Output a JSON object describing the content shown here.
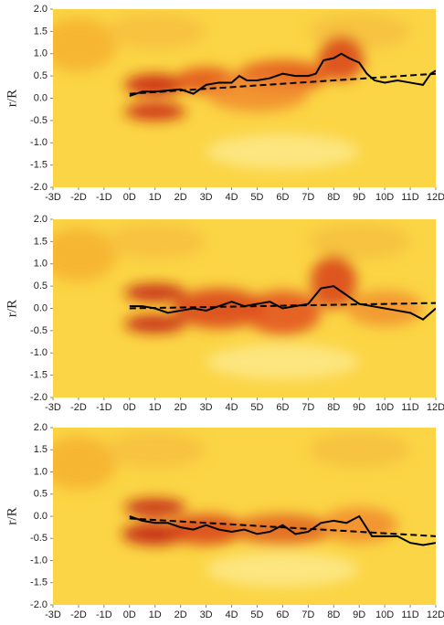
{
  "chart_data": [
    {
      "type": "line",
      "ylabel": "r/R",
      "xlim": [
        -3,
        12
      ],
      "ylim": [
        -2,
        2
      ],
      "xticks": [
        {
          "value": -3,
          "label": "-3D"
        },
        {
          "value": -2,
          "label": "-2D"
        },
        {
          "value": -1,
          "label": "-1D"
        },
        {
          "value": 0,
          "label": "0D"
        },
        {
          "value": 1,
          "label": "1D"
        },
        {
          "value": 2,
          "label": "2D"
        },
        {
          "value": 3,
          "label": "3D"
        },
        {
          "value": 4,
          "label": "4D"
        },
        {
          "value": 5,
          "label": "5D"
        },
        {
          "value": 6,
          "label": "6D"
        },
        {
          "value": 7,
          "label": "7D"
        },
        {
          "value": 8,
          "label": "8D"
        },
        {
          "value": 9,
          "label": "9D"
        },
        {
          "value": 10,
          "label": "10D"
        },
        {
          "value": 11,
          "label": "11D"
        },
        {
          "value": 12,
          "label": "12D"
        }
      ],
      "yticks": [
        {
          "value": 2,
          "label": "2.0"
        },
        {
          "value": 1.5,
          "label": "1.5"
        },
        {
          "value": 1,
          "label": "1.0"
        },
        {
          "value": 0.5,
          "label": "0.5"
        },
        {
          "value": 0,
          "label": "0.0"
        },
        {
          "value": -0.5,
          "label": "-0.5"
        },
        {
          "value": -1,
          "label": "-1.0"
        },
        {
          "value": -1.5,
          "label": "-1.5"
        },
        {
          "value": -2,
          "label": "-2.0"
        }
      ],
      "grid": false,
      "series": [
        {
          "color": "#000000",
          "dash": "solid",
          "x": [
            0,
            0.5,
            1,
            2,
            2.5,
            3,
            3.5,
            4,
            4.3,
            4.6,
            5,
            5.5,
            6,
            6.5,
            7,
            7.3,
            7.6,
            8,
            8.3,
            8.6,
            9,
            9.3,
            9.6,
            10,
            10.5,
            11,
            11.5,
            11.8,
            12
          ],
          "values": [
            0.05,
            0.15,
            0.15,
            0.2,
            0.1,
            0.3,
            0.35,
            0.35,
            0.5,
            0.4,
            0.4,
            0.45,
            0.55,
            0.5,
            0.5,
            0.55,
            0.85,
            0.9,
            1.0,
            0.9,
            0.8,
            0.55,
            0.4,
            0.35,
            0.4,
            0.35,
            0.3,
            0.55,
            0.62
          ]
        },
        {
          "color": "#000000",
          "dash": "dashed",
          "x": [
            0,
            12
          ],
          "values": [
            0.1,
            0.55
          ]
        }
      ]
    },
    {
      "type": "line",
      "ylabel": "r/R",
      "xlim": [
        -3,
        12
      ],
      "ylim": [
        -2,
        2
      ],
      "xticks": [
        {
          "value": -3,
          "label": "-3D"
        },
        {
          "value": -2,
          "label": "-2D"
        },
        {
          "value": -1,
          "label": "-1D"
        },
        {
          "value": 0,
          "label": "0D"
        },
        {
          "value": 1,
          "label": "1D"
        },
        {
          "value": 2,
          "label": "2D"
        },
        {
          "value": 3,
          "label": "3D"
        },
        {
          "value": 4,
          "label": "4D"
        },
        {
          "value": 5,
          "label": "5D"
        },
        {
          "value": 6,
          "label": "6D"
        },
        {
          "value": 7,
          "label": "7D"
        },
        {
          "value": 8,
          "label": "8D"
        },
        {
          "value": 9,
          "label": "9D"
        },
        {
          "value": 10,
          "label": "10D"
        },
        {
          "value": 11,
          "label": "11D"
        },
        {
          "value": 12,
          "label": "12D"
        }
      ],
      "yticks": [
        {
          "value": 2,
          "label": "2.0"
        },
        {
          "value": 1.5,
          "label": "1.5"
        },
        {
          "value": 1,
          "label": "1.0"
        },
        {
          "value": 0.5,
          "label": "0.5"
        },
        {
          "value": 0,
          "label": "0.0"
        },
        {
          "value": -0.5,
          "label": "-0.5"
        },
        {
          "value": -1,
          "label": "-1.0"
        },
        {
          "value": -1.5,
          "label": "-1.5"
        },
        {
          "value": -2,
          "label": "-2.0"
        }
      ],
      "grid": false,
      "series": [
        {
          "color": "#000000",
          "dash": "solid",
          "x": [
            0,
            0.5,
            1,
            1.5,
            2,
            2.5,
            3,
            3.5,
            4,
            4.5,
            5,
            5.5,
            6,
            6.5,
            7,
            7.5,
            8,
            8.5,
            9,
            9.5,
            10,
            10.5,
            11,
            11.5,
            12
          ],
          "values": [
            0.05,
            0.05,
            0,
            -0.1,
            -0.05,
            0,
            -0.05,
            0.05,
            0.15,
            0.05,
            0.1,
            0.15,
            0,
            0.05,
            0.1,
            0.45,
            0.5,
            0.3,
            0.1,
            0.05,
            0,
            -0.05,
            -0.1,
            -0.25,
            0
          ]
        },
        {
          "color": "#000000",
          "dash": "dashed",
          "x": [
            0,
            12
          ],
          "values": [
            0,
            0.12
          ]
        }
      ]
    },
    {
      "type": "line",
      "ylabel": "r/R",
      "xlim": [
        -3,
        12
      ],
      "ylim": [
        -2,
        2
      ],
      "xticks": [
        {
          "value": -3,
          "label": "-3D"
        },
        {
          "value": -2,
          "label": "-2D"
        },
        {
          "value": -1,
          "label": "-1D"
        },
        {
          "value": 0,
          "label": "0D"
        },
        {
          "value": 1,
          "label": "1D"
        },
        {
          "value": 2,
          "label": "2D"
        },
        {
          "value": 3,
          "label": "3D"
        },
        {
          "value": 4,
          "label": "4D"
        },
        {
          "value": 5,
          "label": "5D"
        },
        {
          "value": 6,
          "label": "6D"
        },
        {
          "value": 7,
          "label": "7D"
        },
        {
          "value": 8,
          "label": "8D"
        },
        {
          "value": 9,
          "label": "9D"
        },
        {
          "value": 10,
          "label": "10D"
        },
        {
          "value": 11,
          "label": "11D"
        },
        {
          "value": 12,
          "label": "12D"
        }
      ],
      "yticks": [
        {
          "value": 2,
          "label": "2.0"
        },
        {
          "value": 1.5,
          "label": "1.5"
        },
        {
          "value": 1,
          "label": "1.0"
        },
        {
          "value": 0.5,
          "label": "0.5"
        },
        {
          "value": 0,
          "label": "0.0"
        },
        {
          "value": -0.5,
          "label": "-0.5"
        },
        {
          "value": -1,
          "label": "-1.0"
        },
        {
          "value": -1.5,
          "label": "-1.5"
        },
        {
          "value": -2,
          "label": "-2.0"
        }
      ],
      "grid": false,
      "series": [
        {
          "color": "#000000",
          "dash": "solid",
          "x": [
            0,
            0.5,
            1,
            1.5,
            2,
            2.5,
            3,
            3.5,
            4,
            4.5,
            5,
            5.5,
            6,
            6.5,
            7,
            7.5,
            8,
            8.5,
            9,
            9.5,
            10,
            10.5,
            11,
            11.5,
            12
          ],
          "values": [
            0,
            -0.1,
            -0.15,
            -0.15,
            -0.25,
            -0.3,
            -0.2,
            -0.3,
            -0.35,
            -0.3,
            -0.4,
            -0.35,
            -0.2,
            -0.4,
            -0.35,
            -0.15,
            -0.1,
            -0.15,
            0,
            -0.45,
            -0.45,
            -0.45,
            -0.6,
            -0.65,
            -0.6
          ]
        },
        {
          "color": "#000000",
          "dash": "dashed",
          "x": [
            0,
            12
          ],
          "values": [
            -0.05,
            -0.45
          ]
        }
      ]
    }
  ]
}
